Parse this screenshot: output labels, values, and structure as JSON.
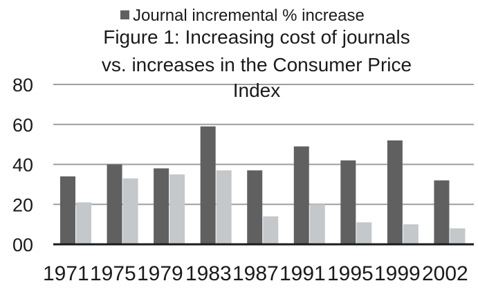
{
  "chart_data": {
    "type": "bar",
    "title_lines": [
      "Figure 1: Increasing cost of journals",
      "vs. increases in the Consumer Price",
      "Index"
    ],
    "legend": {
      "placement": "top",
      "entries": [
        {
          "label": "Journal incremental % increase",
          "color": "#606060"
        }
      ]
    },
    "categories": [
      "1971",
      "1975",
      "1979",
      "1983",
      "1987",
      "1991",
      "1995",
      "1999",
      "2002"
    ],
    "series": [
      {
        "name": "Journal incremental % increase",
        "color": "#606060",
        "values": [
          34,
          40,
          38,
          59,
          37,
          49,
          42,
          52,
          32
        ]
      },
      {
        "color": "#c4c8cb",
        "values": [
          21,
          33,
          35,
          37,
          14,
          20,
          11,
          10,
          8
        ]
      }
    ],
    "y_ticks": [
      "00",
      "20",
      "40",
      "60",
      "80"
    ],
    "y_tick_values": [
      0,
      20,
      40,
      60,
      80
    ],
    "ylim": [
      0,
      80
    ],
    "grid": true,
    "colors": {
      "gridline": "#9e9e9e",
      "axis": "#1a1a1a",
      "text": "#1a1a1a"
    }
  }
}
